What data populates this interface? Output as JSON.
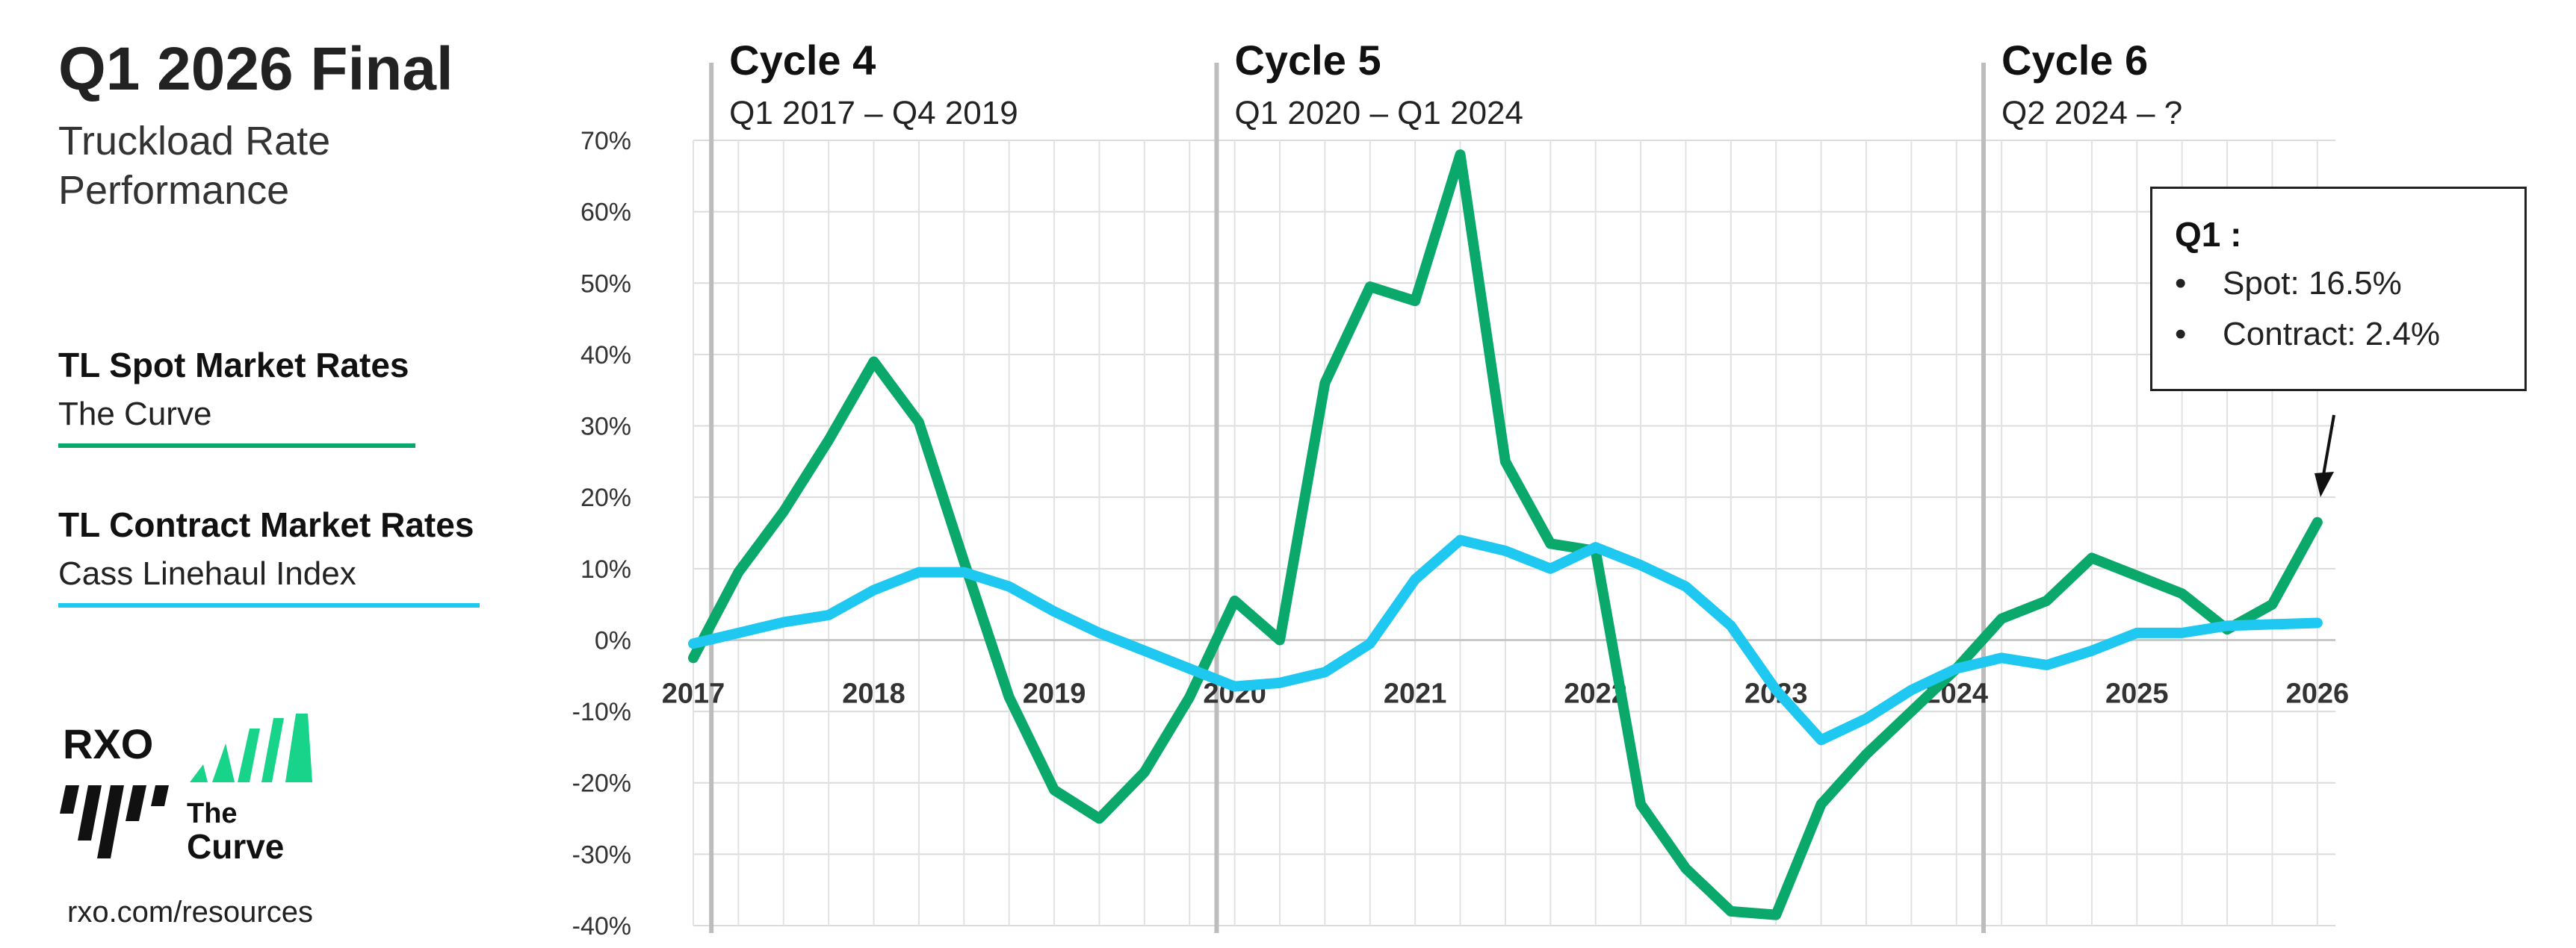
{
  "page": {
    "title": "Q1 2026 Final",
    "subtitle": "Truckload Rate Performance",
    "footer_url": "rxo.com/resources"
  },
  "legend": [
    {
      "title": "TL Spot Market Rates",
      "sub": "The Curve",
      "color": "#0aa86a"
    },
    {
      "title": "TL Contract Market Rates",
      "sub": "Cass Linehaul Index",
      "color": "#1ec8f0"
    }
  ],
  "logo": {
    "brand": "RXO",
    "line1": "The",
    "line2": "Curve"
  },
  "cycles": [
    {
      "name": "Cycle 4",
      "range": "Q1 2017 – Q4 2019",
      "start_x": 2017.1
    },
    {
      "name": "Cycle 5",
      "range": "Q1 2020 – Q1 2024",
      "start_x": 2019.9
    },
    {
      "name": "Cycle 6",
      "range": "Q2 2024 – ?",
      "start_x": 2024.15
    }
  ],
  "callout": {
    "title": "Q1 :",
    "items": [
      "Spot: 16.5%",
      "Contract: 2.4%"
    ]
  },
  "chart_data": {
    "type": "line",
    "xlim": [
      2017,
      2026.1
    ],
    "ylim": [
      -40,
      70
    ],
    "yticks": [
      70,
      60,
      50,
      40,
      30,
      20,
      10,
      0,
      -10,
      -20,
      -30,
      -40
    ],
    "ytick_labels": [
      "70%",
      "60%",
      "50%",
      "40%",
      "30%",
      "20%",
      "10%",
      "0%",
      "-10%",
      "-20%",
      "-30%",
      "-40%"
    ],
    "xticks": [
      2017,
      2018,
      2019,
      2020,
      2021,
      2022,
      2023,
      2024,
      2025,
      2026
    ],
    "xtick_labels": [
      "2017",
      "2018",
      "2019",
      "2020",
      "2021",
      "2022",
      "2023",
      "2024",
      "2025",
      "2026"
    ],
    "grid": true,
    "series": [
      {
        "color": "#0aa86a",
        "x": [
          2017,
          2017.25,
          2017.5,
          2017.75,
          2018,
          2018.25,
          2018.5,
          2018.75,
          2019,
          2019.25,
          2019.5,
          2019.75,
          2020,
          2020.25,
          2020.5,
          2020.75,
          2021,
          2021.25,
          2021.5,
          2021.75,
          2022,
          2022.25,
          2022.5,
          2022.75,
          2023,
          2023.25,
          2023.5,
          2023.75,
          2024,
          2024.25,
          2024.5,
          2024.75,
          2025,
          2025.25,
          2025.5,
          2025.75,
          2026
        ],
        "y": [
          -2.5,
          9.5,
          18,
          28,
          39,
          30.5,
          11,
          -8,
          -21,
          -25,
          -18.5,
          -8,
          5.5,
          0,
          36,
          49.5,
          47.5,
          68,
          25,
          13.5,
          12.5,
          -23,
          -32,
          -38,
          -38.5,
          -23,
          -16,
          -10,
          -4,
          3,
          5.5,
          11.5,
          9,
          6.5,
          1.5,
          5,
          16.5
        ]
      },
      {
        "color": "#1ec8f0",
        "x": [
          2017,
          2017.25,
          2017.5,
          2017.75,
          2018,
          2018.25,
          2018.5,
          2018.75,
          2019,
          2019.25,
          2019.5,
          2019.75,
          2020,
          2020.25,
          2020.5,
          2020.75,
          2021,
          2021.25,
          2021.5,
          2021.75,
          2022,
          2022.25,
          2022.5,
          2022.75,
          2023,
          2023.25,
          2023.5,
          2023.75,
          2024,
          2024.25,
          2024.5,
          2024.75,
          2025,
          2025.25,
          2025.5,
          2025.75,
          2026
        ],
        "y": [
          -0.5,
          1,
          2.5,
          3.5,
          7,
          9.5,
          9.5,
          7.5,
          4,
          1,
          -1.5,
          -4,
          -6.5,
          -6,
          -4.5,
          -0.5,
          8.5,
          14,
          12.5,
          10,
          13,
          10.5,
          7.5,
          2,
          -7,
          -14,
          -11,
          -7,
          -4,
          -2.5,
          -3.5,
          -1.5,
          1,
          1,
          2,
          2.2,
          2.4
        ]
      }
    ]
  }
}
